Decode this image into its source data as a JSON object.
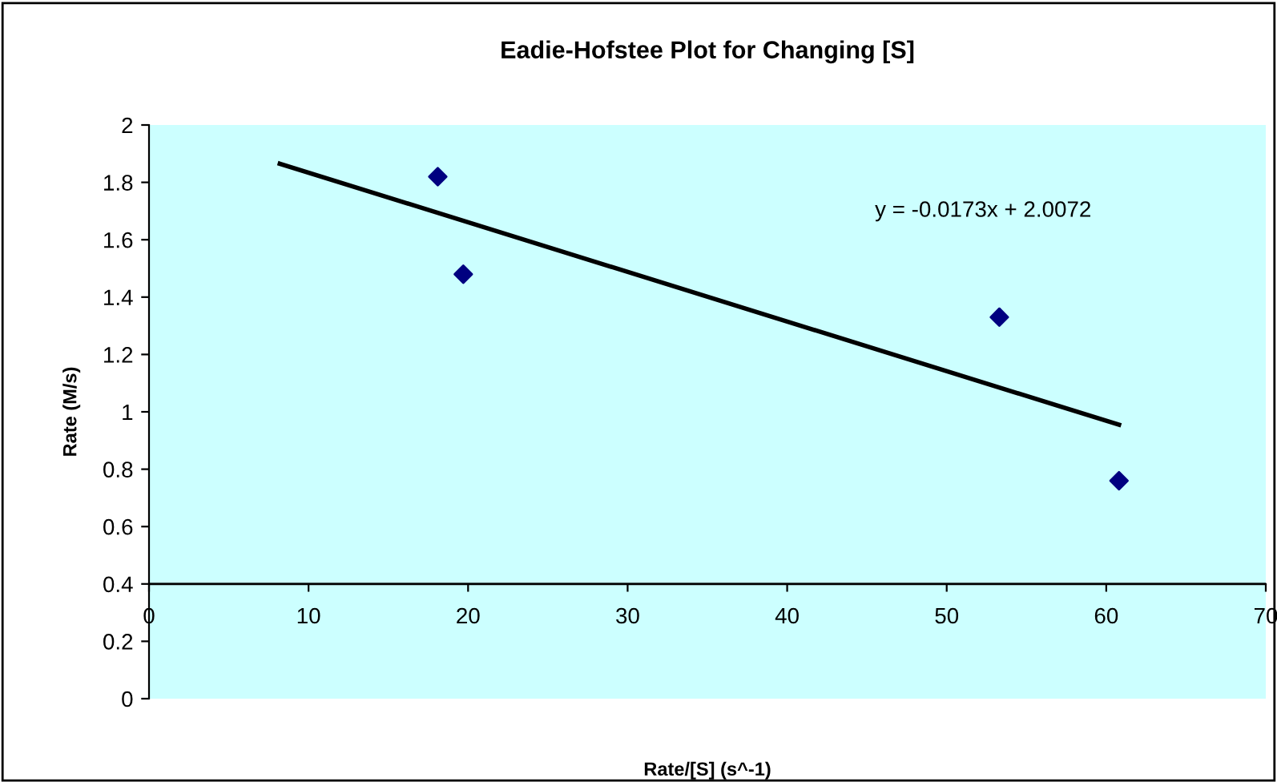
{
  "chart_data": {
    "type": "scatter",
    "title": "Eadie-Hofstee Plot for Changing [S]",
    "xlabel": "Rate/[S] (s^-1)",
    "ylabel": "Rate (M/s)",
    "series": [
      {
        "color": "#000080",
        "marker": "diamond",
        "x": [
          18.1,
          19.7,
          53.3,
          60.8
        ],
        "values": [
          1.82,
          1.48,
          1.33,
          0.76
        ]
      },
      {
        "type": "line",
        "color": "#000000",
        "marker": "none",
        "line_style": "solid",
        "x": [
          8.2,
          60.8
        ],
        "values": [
          1.865,
          0.955
        ]
      }
    ],
    "annotations": [
      "y = -0.0173x + 2.0072"
    ],
    "xlim": [
      0,
      70
    ],
    "xticks": [
      0,
      10,
      20,
      30,
      40,
      50,
      60,
      70
    ],
    "ylim": [
      0,
      2
    ],
    "yticks": [
      0,
      0.2,
      0.4,
      0.6,
      0.8,
      1,
      1.2,
      1.4,
      1.6,
      1.8,
      2
    ],
    "ref_lines": [
      {
        "axis": "y",
        "value": 0.4,
        "color": "#000000"
      }
    ],
    "grid": false,
    "legend": false
  }
}
